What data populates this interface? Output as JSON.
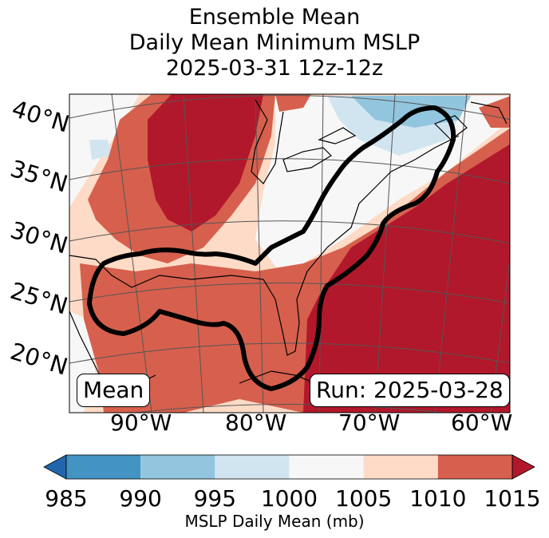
{
  "title": {
    "line1": "Ensemble Mean",
    "line2": "Daily Mean Minimum MSLP",
    "line3": "2025-03-31 12z-12z"
  },
  "map": {
    "lat_labels": [
      "40°N",
      "35°N",
      "30°N",
      "25°N",
      "20°N"
    ],
    "lon_labels": [
      "90°W",
      "80°W",
      "70°W",
      "60°W"
    ],
    "left_box": "Mean",
    "right_box": "Run: 2025-03-28"
  },
  "colorbar": {
    "ticks": [
      "985",
      "990",
      "995",
      "1000",
      "1005",
      "1010",
      "1015"
    ],
    "label": "MSLP Daily Mean (mb)",
    "colors": [
      "#2166ac",
      "#4393c3",
      "#92c5de",
      "#d1e5f0",
      "#f7f7f7",
      "#fddbc7",
      "#d6604d",
      "#b2182b"
    ]
  }
}
